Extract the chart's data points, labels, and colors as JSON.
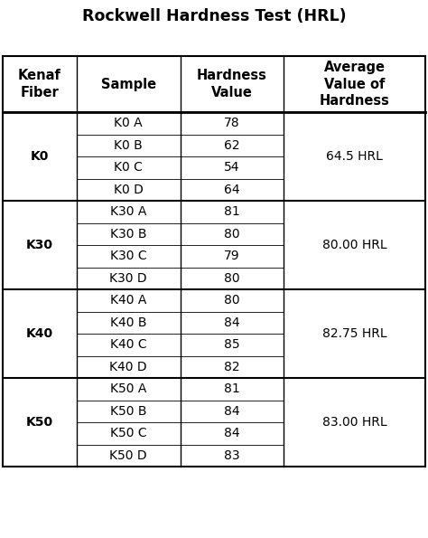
{
  "title": "Rockwell Hardness Test (HRL)",
  "col_headers": [
    "Kenaf\nFiber",
    "Sample",
    "Hardness\nValue",
    "Average\nValue of\nHardness"
  ],
  "groups": [
    {
      "fiber": "K0",
      "samples": [
        "K0 A",
        "K0 B",
        "K0 C",
        "K0 D"
      ],
      "values": [
        78,
        62,
        54,
        64
      ],
      "average": "64.5 HRL"
    },
    {
      "fiber": "K30",
      "samples": [
        "K30 A",
        "K30 B",
        "K30 C",
        "K30 D"
      ],
      "values": [
        81,
        80,
        79,
        80
      ],
      "average": "80.00 HRL"
    },
    {
      "fiber": "K40",
      "samples": [
        "K40 A",
        "K40 B",
        "K40 C",
        "K40 D"
      ],
      "values": [
        80,
        84,
        85,
        82
      ],
      "average": "82.75 HRL"
    },
    {
      "fiber": "K50",
      "samples": [
        "K50 A",
        "K50 B",
        "K50 C",
        "K50 D"
      ],
      "values": [
        81,
        84,
        84,
        83
      ],
      "average": "83.00 HRL"
    }
  ],
  "background_color": "#ffffff",
  "line_color": "#000000",
  "title_fontsize": 12.5,
  "header_fontsize": 10.5,
  "cell_fontsize": 10,
  "avg_fontsize": 10,
  "fiber_fontsize": 10
}
